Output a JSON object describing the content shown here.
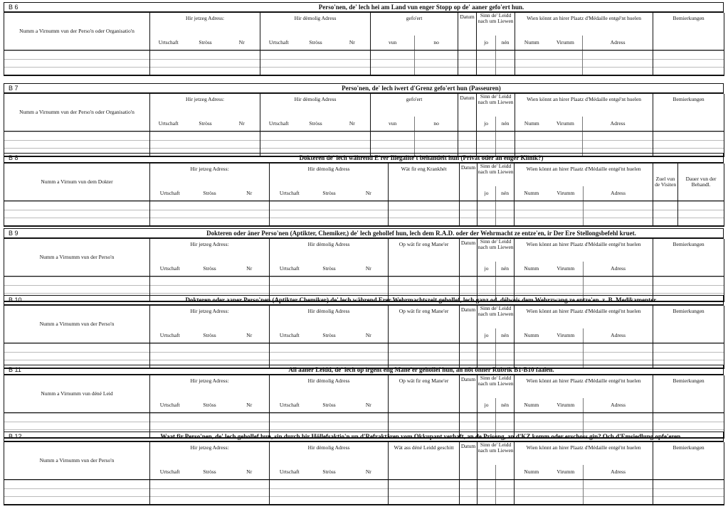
{
  "common": {
    "current_address": "Hir jetzeg Adress:",
    "former_address": "Hir dèmolig Adress",
    "town": "Urtschaft",
    "street": "Stròss",
    "number": "Nr",
    "date": "Datum",
    "suffering": "Sinn de' Leidd nach um Liewen",
    "yes": "jo",
    "no": "nén",
    "medal": "Wien könnt an hirer Plaatz d'Médaille entgé'nt huelen",
    "first_name": "Numm",
    "last_name": "Virumm",
    "address": "Adress",
    "remarks": "Bemierkungen"
  },
  "sections": [
    {
      "id": "B 6",
      "title": "Perso'nen, de' lech hei am Land vun enger Stopp op de' aaner gefo'ert hun.",
      "name_col": "Numm a Virnumm vun der Perso'n oder Organisatio'n",
      "extra": {
        "label": "gefo'ert",
        "sub": [
          "vun",
          "no"
        ]
      }
    },
    {
      "id": "B 7",
      "title": "Perso'nen, de' lech iwert d'Grenz gefo'ert hun (Passeuren)",
      "name_col": "Numm a Virnumm vun der Perso'n oder Organisatio'n",
      "extra": {
        "label": "gefo'ert",
        "sub": [
          "vun",
          "no"
        ]
      }
    },
    {
      "id": "B 8",
      "title": "Dokteren de' lech während E'rer Illegalite't behandelt hun (Privat oder an enger Klinik?)",
      "name_col": "Numm a Virnum vun dem Dokter",
      "extra": {
        "label": "Wät fir eng Krankhét"
      },
      "last_cols": [
        "Zuel vun de Visiten",
        "Dauer vun der Behandl."
      ]
    },
    {
      "id": "B 9",
      "title": "Dokteren oder äner Perso'nen (Aptikter, Chemiker,) de' lech gehollef hun, lech dem R.A.D. oder der Wehrmacht ze entze'en, ir Der Ere Stellongsbefehl kruet.",
      "name_col": "Numm a Virnumm vun der Perso'n",
      "extra": {
        "label": "Op wät fir eng Mane'er"
      }
    },
    {
      "id": "B 10",
      "title": "Dokteren oder aaner Perso'nen (Aptikter Chemiker) de' lech während Erer Wehrmachtszeit gehollef, lech ganz od. délweis dem Wehrzwang ze entze'en. z. B. Medikamenter.",
      "name_col": "Numm a Virnumm vun der Perso'n",
      "extra": {
        "label": "Op wät fir eng Mane'er"
      }
    },
    {
      "id": "B 11",
      "title": "All aaner Leidd, de' lech op irgent eng Mane'er gehollef hun, an nöt önner Rubrik B1-B10 faalen.",
      "name_col": "Numm a Virnumm vun déné Leid",
      "extra": {
        "label": "Op wät fir eng Mane'er"
      }
    },
    {
      "id": "B 12",
      "title": "Waat fir Perso'nen, de' lech gehollef hun, sin durch hir Höllefsaktio'n un d'Refraktären vom Okkupant verhaft, an de Prisong, an d'KZ komm oder erschoss gin? Och d'Emsiedlung opfe'eren.",
      "name_col": "Numm a Virnumm vun der Perso'n",
      "extra": {
        "label": "Wät ass déné Leidd geschitt"
      },
      "hide_yes_no": true
    }
  ]
}
